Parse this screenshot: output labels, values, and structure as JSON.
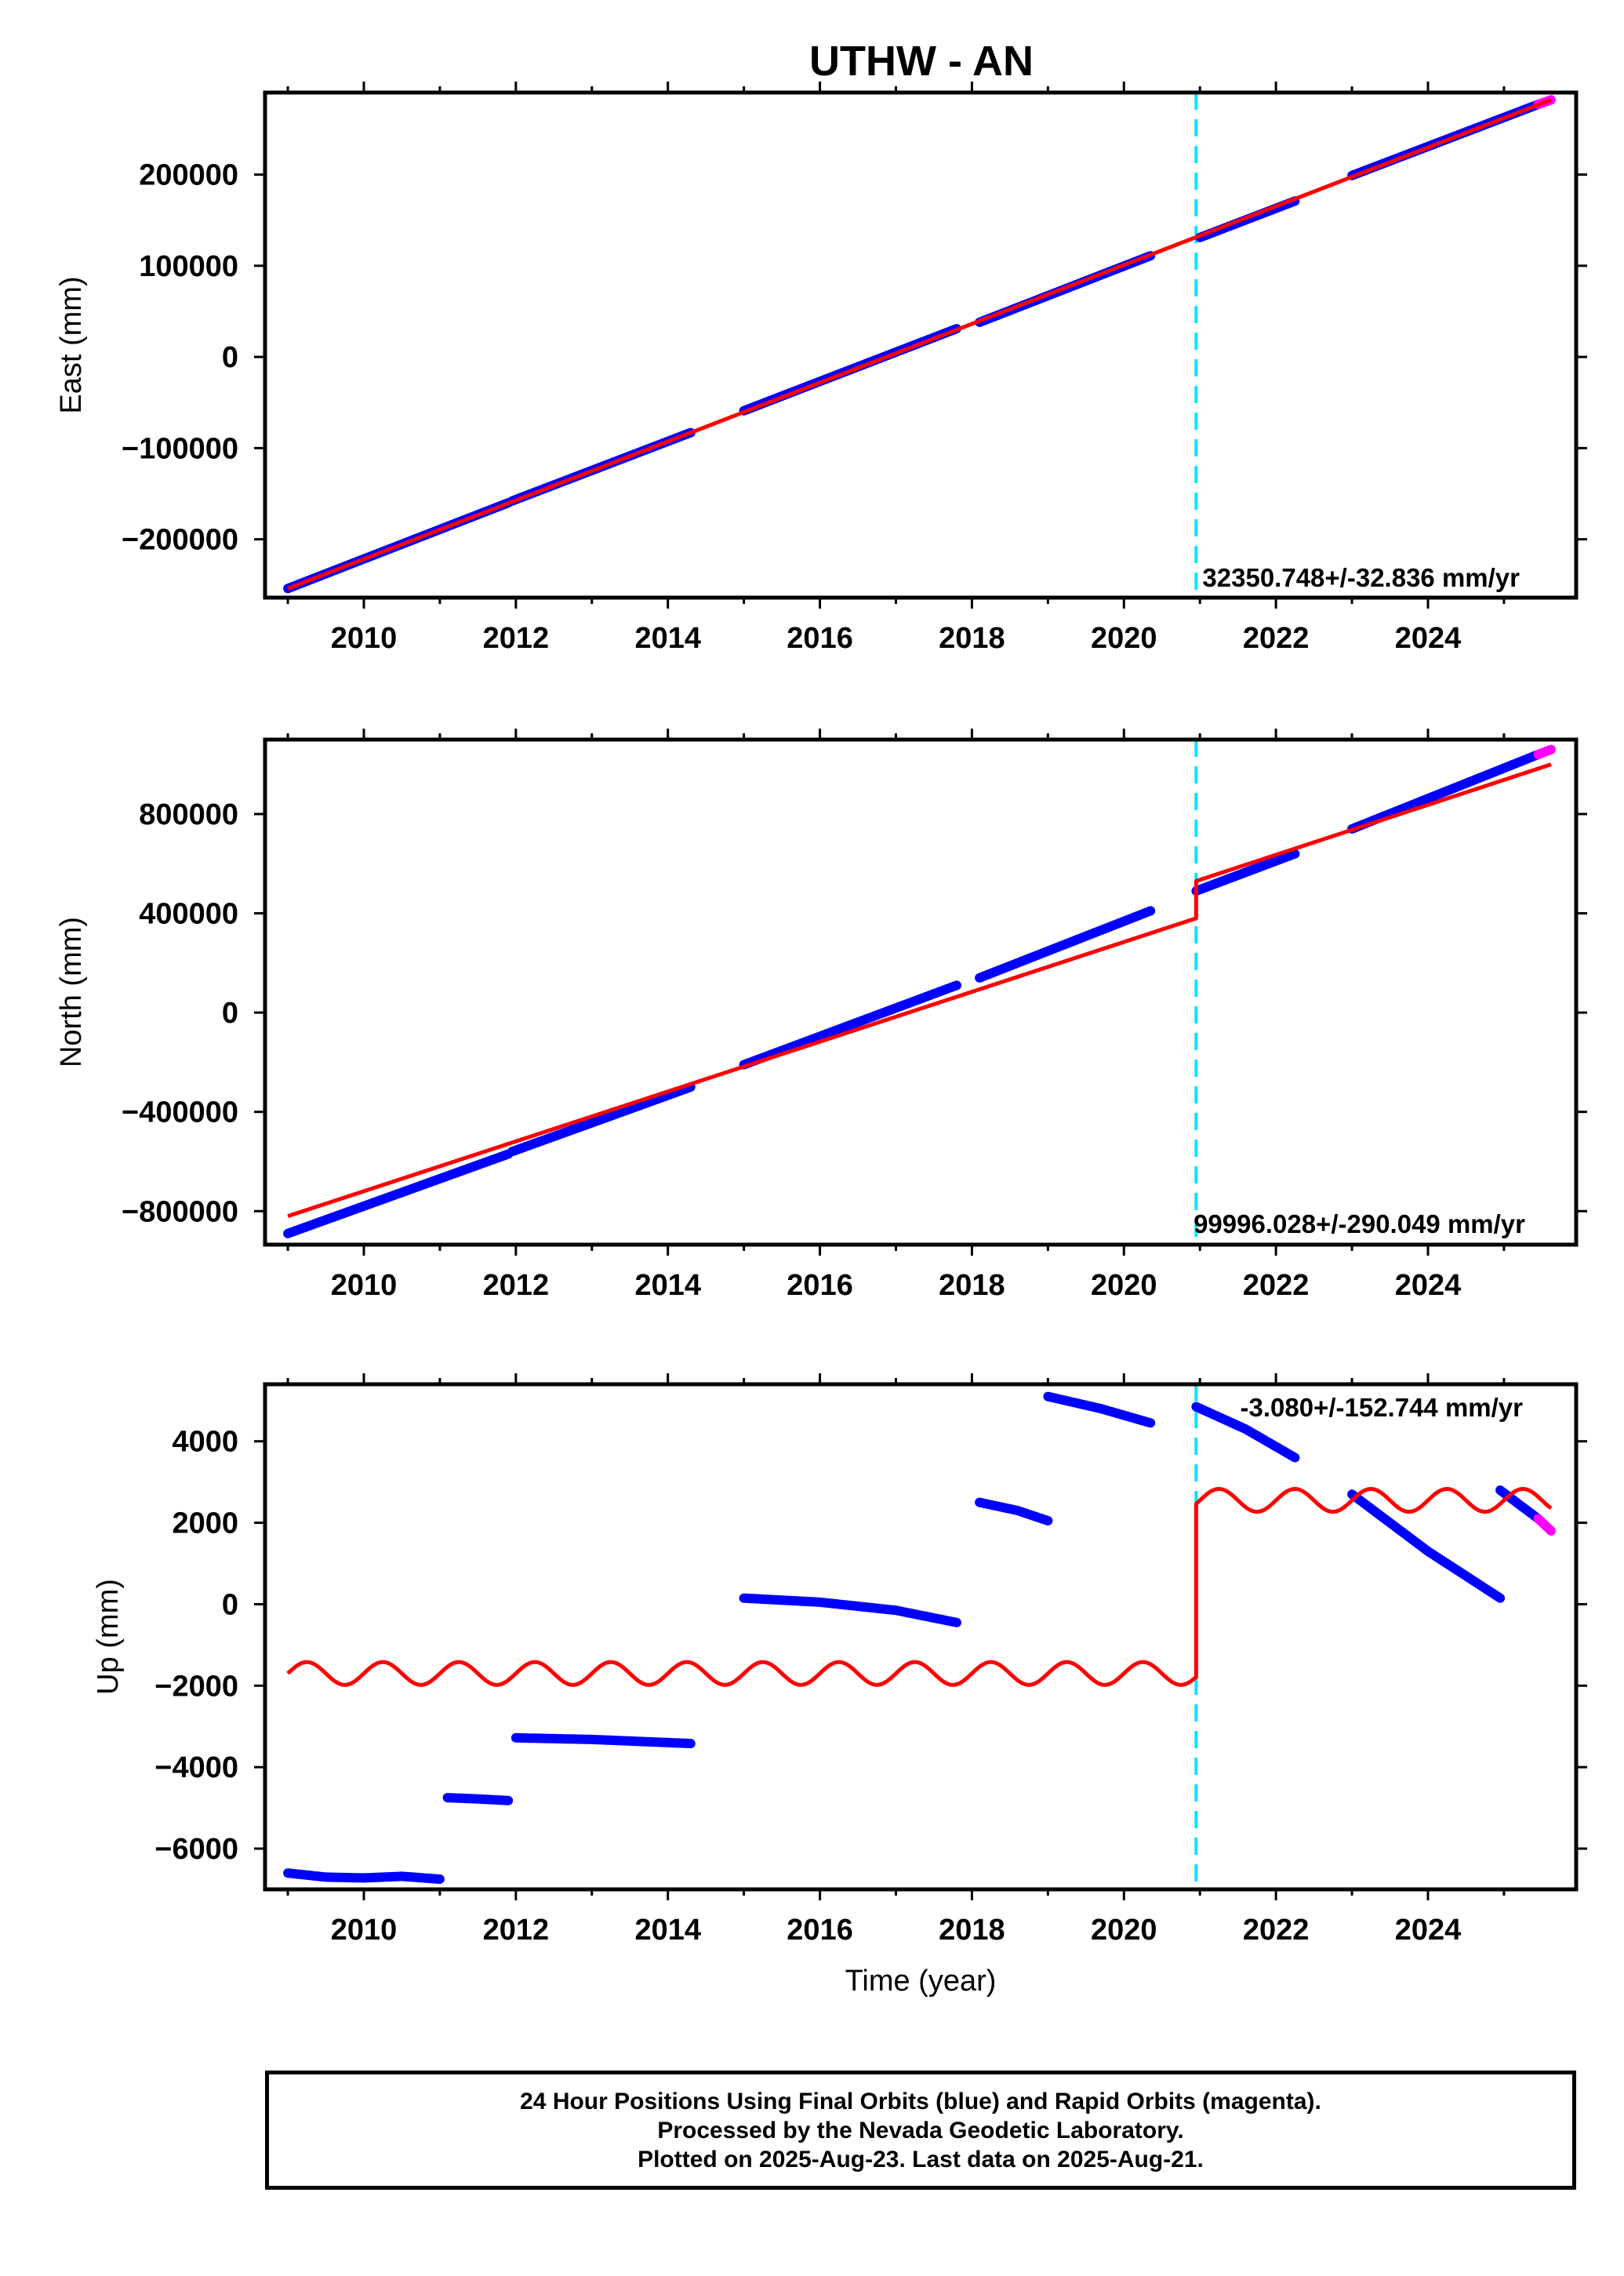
{
  "title": "UTHW - AN",
  "footer": {
    "line1": "24 Hour Positions Using Final Orbits (blue) and Rapid Orbits (magenta).",
    "line2": "Processed by the Nevada Geodetic Laboratory.",
    "line3": "Plotted on 2025-Aug-23. Last data on 2025-Aug-21."
  },
  "colors": {
    "final_orbits": "#0000ff",
    "rapid_orbits": "#ff00ff",
    "model": "#ff0000",
    "event_line": "#00e5ff"
  },
  "chart_data": [
    {
      "type": "scatter",
      "panel": "east",
      "ylabel": "East (mm)",
      "xlim": [
        2008.7,
        2025.95
      ],
      "ylim": [
        -264000,
        290000
      ],
      "xticks": [
        2010,
        2012,
        2014,
        2016,
        2018,
        2020,
        2022,
        2024
      ],
      "xtick_labels": [
        "2010",
        "2012",
        "2014",
        "2016",
        "2018",
        "2020",
        "2022",
        "2024"
      ],
      "yticks": [
        -200000,
        -100000,
        0,
        100000,
        200000
      ],
      "ytick_labels": [
        "−200000",
        "−100000",
        "0",
        "100000",
        "200000"
      ],
      "event_x": 2020.95,
      "rate_label": "32350.748+/-32.836 mm/yr",
      "series": [
        {
          "role": "final_orbits",
          "segments": [
            {
              "x": [
                2009.0,
                2011.9
              ],
              "y": [
                -254000,
                -160000
              ]
            },
            {
              "x": [
                2011.95,
                2014.3
              ],
              "y": [
                -158000,
                -83000
              ]
            },
            {
              "x": [
                2015.0,
                2017.8
              ],
              "y": [
                -59000,
                31000
              ]
            },
            {
              "x": [
                2018.1,
                2020.35
              ],
              "y": [
                38000,
                111000
              ]
            },
            {
              "x": [
                2021.0,
                2022.25
              ],
              "y": [
                131000,
                171000
              ]
            },
            {
              "x": [
                2023.0,
                2025.45
              ],
              "y": [
                199000,
                277000
              ]
            }
          ]
        },
        {
          "role": "rapid_orbits",
          "segments": [
            {
              "x": [
                2025.45,
                2025.62
              ],
              "y": [
                277000,
                282000
              ]
            }
          ]
        },
        {
          "role": "model",
          "segments": [
            {
              "x": [
                2009.0,
                2025.62
              ],
              "y": [
                -254000,
                282000
              ]
            }
          ]
        }
      ]
    },
    {
      "type": "scatter",
      "panel": "north",
      "ylabel": "North (mm)",
      "xlim": [
        2008.7,
        2025.95
      ],
      "ylim": [
        -935000,
        1100000
      ],
      "xticks": [
        2010,
        2012,
        2014,
        2016,
        2018,
        2020,
        2022,
        2024
      ],
      "xtick_labels": [
        "2010",
        "2012",
        "2014",
        "2016",
        "2018",
        "2020",
        "2022",
        "2024"
      ],
      "yticks": [
        -800000,
        -400000,
        0,
        400000,
        800000
      ],
      "ytick_labels": [
        "−800000",
        "−400000",
        "0",
        "400000",
        "800000"
      ],
      "event_x": 2020.95,
      "rate_label": "99996.028+/-290.049 mm/yr",
      "series": [
        {
          "role": "final_orbits",
          "segments": [
            {
              "x": [
                2009.0,
                2011.9
              ],
              "y": [
                -890000,
                -570000
              ]
            },
            {
              "x": [
                2011.95,
                2014.3
              ],
              "y": [
                -560000,
                -300000
              ]
            },
            {
              "x": [
                2015.0,
                2017.8
              ],
              "y": [
                -210000,
                110000
              ]
            },
            {
              "x": [
                2018.1,
                2020.35
              ],
              "y": [
                140000,
                410000
              ]
            },
            {
              "x": [
                2020.95,
                2022.25
              ],
              "y": [
                490000,
                640000
              ]
            },
            {
              "x": [
                2023.0,
                2025.45
              ],
              "y": [
                740000,
                1040000
              ]
            }
          ]
        },
        {
          "role": "rapid_orbits",
          "segments": [
            {
              "x": [
                2025.45,
                2025.62
              ],
              "y": [
                1040000,
                1060000
              ]
            }
          ]
        },
        {
          "role": "model",
          "segments": [
            {
              "x": [
                2009.0,
                2020.95
              ],
              "y": [
                -820000,
                380000
              ]
            },
            {
              "x": [
                2020.95,
                2020.95
              ],
              "y": [
                380000,
                530000
              ]
            },
            {
              "x": [
                2020.95,
                2025.62
              ],
              "y": [
                530000,
                1000000
              ]
            }
          ]
        }
      ]
    },
    {
      "type": "scatter",
      "panel": "up",
      "ylabel": "Up (mm)",
      "xlabel": "Time (year)",
      "xlim": [
        2008.7,
        2025.95
      ],
      "ylim": [
        -7000,
        5400
      ],
      "xticks": [
        2010,
        2012,
        2014,
        2016,
        2018,
        2020,
        2022,
        2024
      ],
      "xtick_labels": [
        "2010",
        "2012",
        "2014",
        "2016",
        "2018",
        "2020",
        "2022",
        "2024"
      ],
      "yticks": [
        -6000,
        -4000,
        -2000,
        0,
        2000,
        4000
      ],
      "ytick_labels": [
        "−6000",
        "−4000",
        "−2000",
        "0",
        "2000",
        "4000"
      ],
      "event_x": 2020.95,
      "rate_label": "-3.080+/-152.744 mm/yr",
      "series": [
        {
          "role": "final_orbits",
          "segments": [
            {
              "x": [
                2009.0,
                2009.5,
                2010.0,
                2010.5,
                2011.0
              ],
              "y": [
                -6600,
                -6700,
                -6720,
                -6680,
                -6750
              ]
            },
            {
              "x": [
                2011.1,
                2011.5,
                2011.9
              ],
              "y": [
                -4750,
                -4780,
                -4820
              ]
            },
            {
              "x": [
                2012.0,
                2013.0,
                2014.3
              ],
              "y": [
                -3280,
                -3320,
                -3420
              ]
            },
            {
              "x": [
                2015.0,
                2016.0,
                2017.0,
                2017.8
              ],
              "y": [
                150,
                50,
                -150,
                -450
              ]
            },
            {
              "x": [
                2018.1,
                2018.6,
                2019.0
              ],
              "y": [
                2500,
                2300,
                2050
              ]
            },
            {
              "x": [
                2019.0,
                2019.7,
                2020.35
              ],
              "y": [
                5100,
                4800,
                4450
              ]
            },
            {
              "x": [
                2020.95,
                2021.6,
                2022.25
              ],
              "y": [
                4850,
                4300,
                3600
              ]
            },
            {
              "x": [
                2023.0,
                2024.0,
                2024.95
              ],
              "y": [
                2700,
                1300,
                150
              ]
            },
            {
              "x": [
                2024.95,
                2025.45
              ],
              "y": [
                2800,
                2100
              ]
            }
          ]
        },
        {
          "role": "rapid_orbits",
          "segments": [
            {
              "x": [
                2025.45,
                2025.62
              ],
              "y": [
                2100,
                1800
              ]
            }
          ]
        },
        {
          "role": "model",
          "seasonal": {
            "amplitude": 280,
            "period_years": 1.0
          },
          "segments": [
            {
              "x": [
                2009.0,
                2020.95
              ],
              "y": [
                -1700,
                -1700
              ]
            },
            {
              "x": [
                2020.95,
                2025.62
              ],
              "y": [
                2550,
                2550
              ]
            }
          ]
        }
      ]
    }
  ]
}
